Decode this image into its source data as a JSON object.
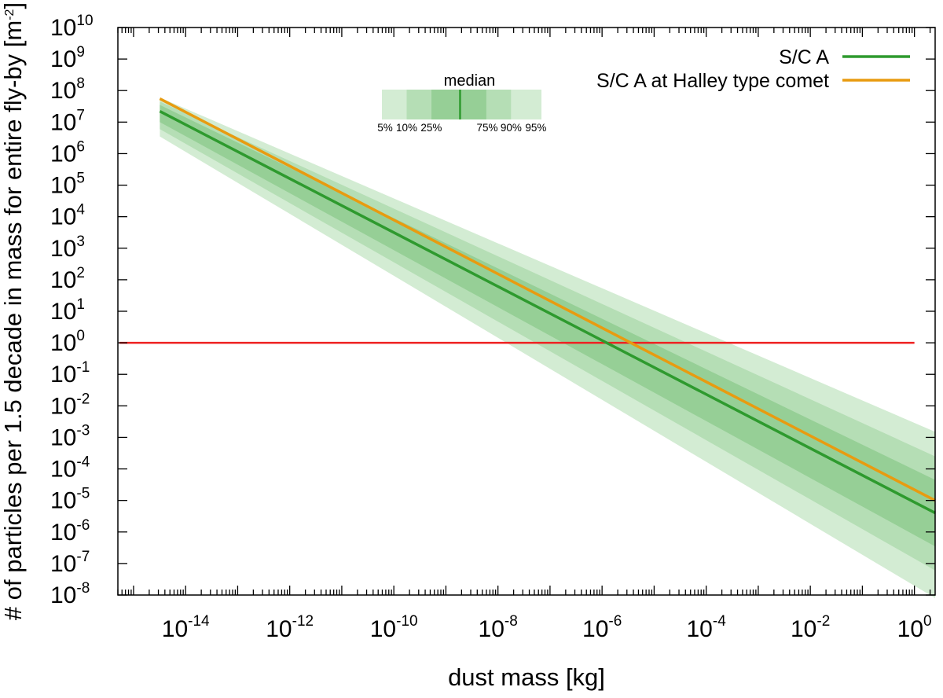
{
  "chart_data": {
    "type": "line",
    "xlabel": "dust mass [kg]",
    "ylabel": "# of particles per 1.5 decade in mass for entire fly-by [m",
    "ylabel_unit_exp": "-2",
    "ylabel_close": "]",
    "x_scale": "log",
    "y_scale": "log",
    "xlim": [
      5e-16,
      2.5
    ],
    "ylim": [
      1e-08,
      10000000000.0
    ],
    "x_tick_exponents": [
      "-14",
      "-12",
      "-10",
      "-8",
      "-6",
      "-4",
      "-2",
      "0"
    ],
    "y_tick_exponents": [
      "10",
      "9",
      "8",
      "7",
      "6",
      "5",
      "4",
      "3",
      "2",
      "1",
      "0",
      "-1",
      "-2",
      "-3",
      "-4",
      "-5",
      "-6",
      "-7",
      "-8"
    ],
    "tick_base": "10",
    "grid": false,
    "legend_position": "top-right",
    "series": [
      {
        "name": "S/C A",
        "color": "#2e9a2e",
        "x": [
          3.2e-15,
          2.5
        ],
        "y": [
          22000000.0,
          4e-06
        ]
      },
      {
        "name": "S/C A at Halley type comet",
        "color": "#e89b10",
        "x": [
          3.2e-15,
          2.5
        ],
        "y": [
          55000000.0,
          1e-05
        ]
      }
    ],
    "percentile_bands": {
      "x": [
        3.2e-15,
        2.5
      ],
      "colors": [
        "#d3ecd3",
        "#b5deb5",
        "#96cf96"
      ],
      "bands": [
        {
          "lower": "5%",
          "upper": "95%",
          "y_low": [
            3500000.0,
            8e-09
          ],
          "y_high": [
            60000000.0,
            0.0015
          ]
        },
        {
          "lower": "10%",
          "upper": "90%",
          "y_low": [
            6000000.0,
            6e-08
          ],
          "y_high": [
            45000000.0,
            0.00025
          ]
        },
        {
          "lower": "25%",
          "upper": "75%",
          "y_low": [
            10000000.0,
            3.5e-07
          ],
          "y_high": [
            35000000.0,
            4.5e-05
          ]
        }
      ]
    },
    "reference_line": {
      "y": 1,
      "color": "#ee2222"
    },
    "band_key": {
      "median_label": "median",
      "labels": [
        "5%",
        "10%",
        "25%",
        "75%",
        "90%",
        "95%"
      ]
    }
  }
}
